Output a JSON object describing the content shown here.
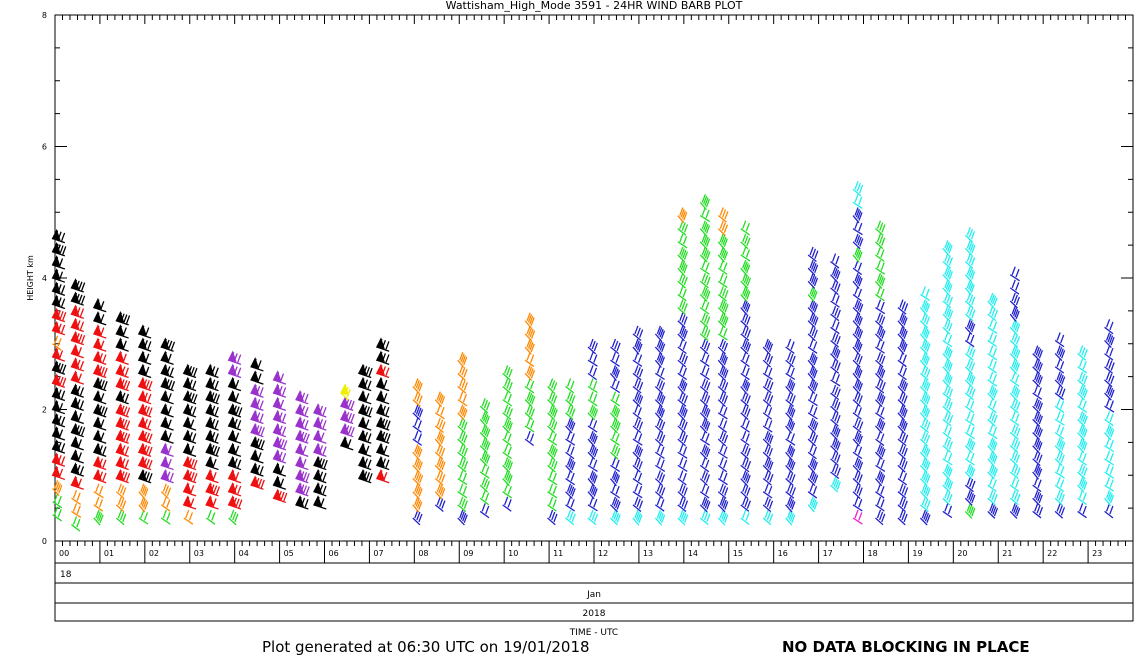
{
  "chart_data": {
    "type": "wind-barb",
    "title": "Wattisham_High_Mode 3591 - 24HR WIND BARB PLOT",
    "ylabel": "HEIGHT km",
    "xlabel": "TIME - UTC",
    "ylim": [
      0,
      8
    ],
    "yticks": [
      "0",
      "2",
      "4",
      "6",
      "8"
    ],
    "xlim": [
      0,
      24
    ],
    "hours": [
      "00",
      "01",
      "02",
      "03",
      "04",
      "05",
      "06",
      "07",
      "08",
      "09",
      "10",
      "11",
      "12",
      "13",
      "14",
      "15",
      "16",
      "17",
      "18",
      "19",
      "20",
      "21",
      "22",
      "23"
    ],
    "day": "18",
    "month": "Jan",
    "year": "2018",
    "colors": {
      "green": "#22dd22",
      "orange": "#ff8800",
      "red": "#ee1111",
      "black": "#000000",
      "purple": "#9933cc",
      "yellow": "#eeee00",
      "blue": "#2222cc",
      "cyan": "#22eeee",
      "magenta": "#ee22cc"
    },
    "columns": [
      {
        "t": 0.08,
        "top": 4.6,
        "colors": [
          [
            0.6,
            "green"
          ],
          [
            0.9,
            "orange"
          ],
          [
            1.3,
            "red"
          ],
          [
            2.2,
            "black"
          ],
          [
            2.4,
            "red"
          ],
          [
            2.6,
            "black"
          ],
          [
            2.9,
            "red"
          ],
          [
            3.1,
            "orange"
          ],
          [
            3.5,
            "red"
          ],
          [
            4.7,
            "black"
          ]
        ]
      },
      {
        "t": 0.5,
        "top": 4.0,
        "colors": [
          [
            0.4,
            "green"
          ],
          [
            0.8,
            "orange"
          ],
          [
            1.0,
            "red"
          ],
          [
            2.4,
            "black"
          ],
          [
            3.6,
            "red"
          ],
          [
            4.1,
            "black"
          ]
        ]
      },
      {
        "t": 1.0,
        "top": 3.6,
        "colors": [
          [
            0.5,
            "green"
          ],
          [
            0.8,
            "orange"
          ],
          [
            1.2,
            "red"
          ],
          [
            2.4,
            "black"
          ],
          [
            3.3,
            "red"
          ],
          [
            3.7,
            "black"
          ]
        ]
      },
      {
        "t": 1.5,
        "top": 3.4,
        "colors": [
          [
            0.5,
            "green"
          ],
          [
            0.9,
            "orange"
          ],
          [
            2.0,
            "red"
          ],
          [
            2.3,
            "black"
          ],
          [
            2.9,
            "red"
          ],
          [
            3.4,
            "black"
          ]
        ]
      },
      {
        "t": 2.0,
        "top": 3.2,
        "colors": [
          [
            0.5,
            "green"
          ],
          [
            0.9,
            "orange"
          ],
          [
            1.1,
            "black"
          ],
          [
            1.5,
            "red"
          ],
          [
            2.4,
            "red"
          ],
          [
            3.2,
            "black"
          ]
        ]
      },
      {
        "t": 2.5,
        "top": 3.0,
        "colors": [
          [
            0.5,
            "green"
          ],
          [
            0.8,
            "orange"
          ],
          [
            1.5,
            "purple"
          ],
          [
            3.0,
            "black"
          ]
        ]
      },
      {
        "t": 3.0,
        "top": 2.6,
        "colors": [
          [
            0.5,
            "orange"
          ],
          [
            0.9,
            "red"
          ],
          [
            1.3,
            "red"
          ],
          [
            2.6,
            "black"
          ]
        ]
      },
      {
        "t": 3.5,
        "top": 2.6,
        "colors": [
          [
            0.5,
            "green"
          ],
          [
            1.0,
            "red"
          ],
          [
            1.6,
            "black"
          ],
          [
            2.6,
            "black"
          ]
        ]
      },
      {
        "t": 4.0,
        "top": 2.8,
        "colors": [
          [
            0.5,
            "green"
          ],
          [
            1.0,
            "red"
          ],
          [
            2.2,
            "black"
          ],
          [
            2.5,
            "black"
          ],
          [
            2.8,
            "purple"
          ]
        ]
      },
      {
        "t": 4.5,
        "top": 2.8,
        "colors": [
          [
            1.0,
            "red"
          ],
          [
            1.6,
            "black"
          ],
          [
            2.4,
            "purple"
          ],
          [
            2.8,
            "black"
          ]
        ]
      },
      {
        "t": 5.0,
        "top": 2.5,
        "colors": [
          [
            0.8,
            "red"
          ],
          [
            1.2,
            "black"
          ],
          [
            1.6,
            "purple"
          ],
          [
            2.5,
            "purple"
          ]
        ]
      },
      {
        "t": 5.5,
        "top": 2.3,
        "colors": [
          [
            0.7,
            "black"
          ],
          [
            1.5,
            "purple"
          ],
          [
            2.3,
            "purple"
          ]
        ]
      },
      {
        "t": 5.9,
        "top": 2.1,
        "colors": [
          [
            0.7,
            "black"
          ],
          [
            1.2,
            "black"
          ],
          [
            2.1,
            "purple"
          ]
        ]
      },
      {
        "t": 6.5,
        "top": 2.4,
        "colors": [
          [
            1.6,
            "black"
          ],
          [
            2.1,
            "purple"
          ],
          [
            2.4,
            "yellow"
          ]
        ]
      },
      {
        "t": 6.9,
        "top": 2.7,
        "colors": [
          [
            1.1,
            "black"
          ],
          [
            2.7,
            "black"
          ]
        ]
      },
      {
        "t": 7.3,
        "top": 3.0,
        "colors": [
          [
            1.1,
            "red"
          ],
          [
            2.5,
            "black"
          ],
          [
            2.7,
            "red"
          ],
          [
            3.0,
            "black"
          ]
        ]
      },
      {
        "t": 8.1,
        "top": 2.4,
        "colors": [
          [
            0.5,
            "blue"
          ],
          [
            1.5,
            "orange"
          ],
          [
            2.0,
            "blue"
          ],
          [
            2.4,
            "orange"
          ]
        ]
      },
      {
        "t": 8.6,
        "top": 2.2,
        "colors": [
          [
            0.7,
            "blue"
          ],
          [
            2.2,
            "orange"
          ]
        ]
      },
      {
        "t": 9.1,
        "top": 2.8,
        "colors": [
          [
            0.5,
            "blue"
          ],
          [
            1.9,
            "green"
          ],
          [
            2.8,
            "orange"
          ]
        ]
      },
      {
        "t": 9.6,
        "top": 2.2,
        "colors": [
          [
            0.6,
            "blue"
          ],
          [
            2.2,
            "green"
          ]
        ]
      },
      {
        "t": 10.1,
        "top": 2.7,
        "colors": [
          [
            0.7,
            "blue"
          ],
          [
            2.5,
            "green"
          ],
          [
            2.7,
            "green"
          ]
        ]
      },
      {
        "t": 10.6,
        "top": 3.4,
        "colors": [
          [
            1.7,
            "blue"
          ],
          [
            2.4,
            "green"
          ],
          [
            3.4,
            "orange"
          ]
        ]
      },
      {
        "t": 11.1,
        "top": 2.5,
        "colors": [
          [
            0.5,
            "blue"
          ],
          [
            2.5,
            "green"
          ]
        ]
      },
      {
        "t": 11.5,
        "top": 2.4,
        "colors": [
          [
            0.5,
            "cyan"
          ],
          [
            1.8,
            "blue"
          ],
          [
            2.4,
            "green"
          ]
        ]
      },
      {
        "t": 12.0,
        "top": 3.0,
        "colors": [
          [
            0.5,
            "cyan"
          ],
          [
            1.8,
            "blue"
          ],
          [
            2.4,
            "green"
          ],
          [
            3.0,
            "blue"
          ]
        ]
      },
      {
        "t": 12.5,
        "top": 3.1,
        "colors": [
          [
            0.5,
            "cyan"
          ],
          [
            1.2,
            "blue"
          ],
          [
            2.2,
            "green"
          ],
          [
            3.1,
            "blue"
          ]
        ]
      },
      {
        "t": 13.0,
        "top": 3.2,
        "colors": [
          [
            0.5,
            "cyan"
          ],
          [
            2.6,
            "blue"
          ],
          [
            3.2,
            "blue"
          ]
        ]
      },
      {
        "t": 13.5,
        "top": 3.2,
        "colors": [
          [
            0.5,
            "cyan"
          ],
          [
            3.2,
            "blue"
          ]
        ]
      },
      {
        "t": 14.0,
        "top": 5.1,
        "colors": [
          [
            0.5,
            "cyan"
          ],
          [
            3.4,
            "blue"
          ],
          [
            4.9,
            "green"
          ],
          [
            5.1,
            "orange"
          ]
        ]
      },
      {
        "t": 14.5,
        "top": 5.3,
        "colors": [
          [
            0.5,
            "cyan"
          ],
          [
            3.0,
            "blue"
          ],
          [
            4.5,
            "green"
          ],
          [
            5.3,
            "green"
          ]
        ]
      },
      {
        "t": 14.9,
        "top": 5.1,
        "colors": [
          [
            0.5,
            "cyan"
          ],
          [
            3.0,
            "blue"
          ],
          [
            4.6,
            "green"
          ],
          [
            5.1,
            "orange"
          ]
        ]
      },
      {
        "t": 15.4,
        "top": 4.8,
        "colors": [
          [
            0.5,
            "cyan"
          ],
          [
            3.6,
            "blue"
          ],
          [
            4.8,
            "green"
          ]
        ]
      },
      {
        "t": 15.9,
        "top": 3.0,
        "colors": [
          [
            0.5,
            "cyan"
          ],
          [
            2.6,
            "blue"
          ],
          [
            3.0,
            "blue"
          ]
        ]
      },
      {
        "t": 16.4,
        "top": 3.0,
        "colors": [
          [
            0.5,
            "cyan"
          ],
          [
            1.5,
            "blue"
          ],
          [
            3.0,
            "blue"
          ]
        ]
      },
      {
        "t": 16.9,
        "top": 4.5,
        "colors": [
          [
            0.7,
            "cyan"
          ],
          [
            3.6,
            "blue"
          ],
          [
            3.8,
            "green"
          ],
          [
            4.5,
            "blue"
          ]
        ]
      },
      {
        "t": 17.4,
        "top": 4.4,
        "colors": [
          [
            1.0,
            "cyan"
          ],
          [
            4.4,
            "blue"
          ]
        ]
      },
      {
        "t": 17.9,
        "top": 5.5,
        "colors": [
          [
            0.5,
            "magenta"
          ],
          [
            1.0,
            "blue"
          ],
          [
            4.2,
            "blue"
          ],
          [
            4.4,
            "green"
          ],
          [
            5.1,
            "blue"
          ],
          [
            5.5,
            "cyan"
          ]
        ]
      },
      {
        "t": 18.4,
        "top": 4.8,
        "colors": [
          [
            0.5,
            "blue"
          ],
          [
            3.6,
            "blue"
          ],
          [
            4.8,
            "green"
          ]
        ]
      },
      {
        "t": 18.9,
        "top": 3.6,
        "colors": [
          [
            0.5,
            "blue"
          ],
          [
            3.6,
            "blue"
          ]
        ]
      },
      {
        "t": 19.4,
        "top": 3.8,
        "colors": [
          [
            0.5,
            "blue"
          ],
          [
            2.6,
            "cyan"
          ],
          [
            3.8,
            "cyan"
          ]
        ]
      },
      {
        "t": 19.9,
        "top": 4.5,
        "colors": [
          [
            0.6,
            "blue"
          ],
          [
            4.5,
            "cyan"
          ]
        ]
      },
      {
        "t": 20.4,
        "top": 4.7,
        "colors": [
          [
            0.6,
            "green"
          ],
          [
            1.0,
            "blue"
          ],
          [
            3.0,
            "cyan"
          ],
          [
            3.3,
            "blue"
          ],
          [
            4.7,
            "cyan"
          ]
        ]
      },
      {
        "t": 20.9,
        "top": 3.8,
        "colors": [
          [
            0.6,
            "blue"
          ],
          [
            3.8,
            "cyan"
          ]
        ]
      },
      {
        "t": 21.4,
        "top": 4.2,
        "colors": [
          [
            0.6,
            "blue"
          ],
          [
            3.3,
            "cyan"
          ],
          [
            4.2,
            "blue"
          ]
        ]
      },
      {
        "t": 21.9,
        "top": 3.0,
        "colors": [
          [
            0.6,
            "blue"
          ],
          [
            2.6,
            "blue"
          ],
          [
            3.0,
            "blue"
          ]
        ]
      },
      {
        "t": 22.4,
        "top": 3.1,
        "colors": [
          [
            0.6,
            "blue"
          ],
          [
            2.2,
            "cyan"
          ],
          [
            3.1,
            "blue"
          ]
        ]
      },
      {
        "t": 22.9,
        "top": 2.9,
        "colors": [
          [
            0.6,
            "blue"
          ],
          [
            2.1,
            "cyan"
          ],
          [
            2.9,
            "cyan"
          ]
        ]
      },
      {
        "t": 23.5,
        "top": 3.3,
        "colors": [
          [
            0.6,
            "blue"
          ],
          [
            2.0,
            "cyan"
          ],
          [
            3.3,
            "blue"
          ]
        ]
      }
    ]
  },
  "footer": {
    "generated": "Plot generated at 06:30 UTC on 19/01/2018",
    "blocking": "NO DATA BLOCKING IN PLACE"
  }
}
